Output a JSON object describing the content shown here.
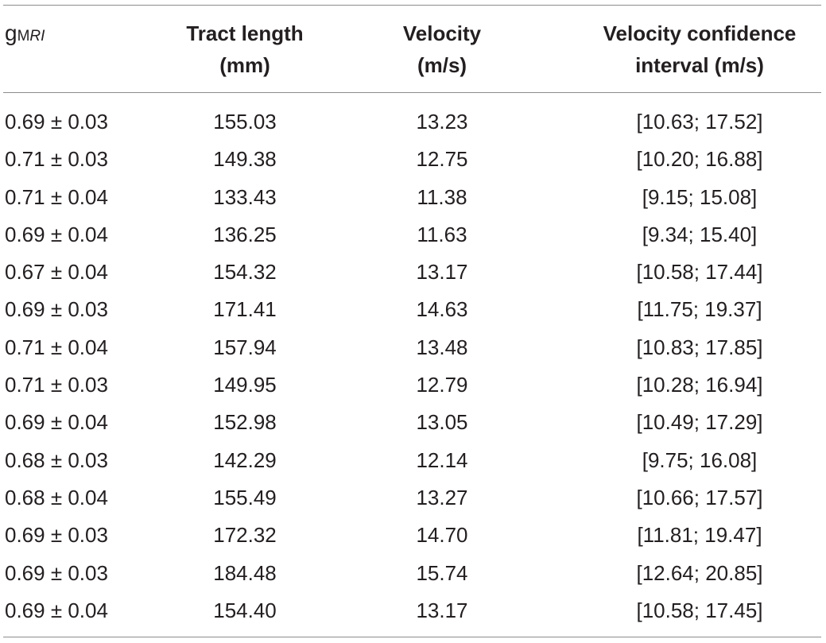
{
  "table": {
    "headers": {
      "col0_symbol": "g",
      "col0_subscript_upright": "M",
      "col0_subscript_italic": "RI",
      "col1_line1": "Tract length",
      "col1_line2": "(mm)",
      "col2_line1": "Velocity",
      "col2_line2": "(m/s)",
      "col3_line1": "Velocity confidence",
      "col3_line2": "interval (m/s)"
    },
    "rows": [
      [
        "0.69 ± 0.03",
        "155.03",
        "13.23",
        "[10.63; 17.52]"
      ],
      [
        "0.71 ± 0.03",
        "149.38",
        "12.75",
        "[10.20; 16.88]"
      ],
      [
        "0.71 ± 0.04",
        "133.43",
        "11.38",
        "[9.15; 15.08]"
      ],
      [
        "0.69 ± 0.04",
        "136.25",
        "11.63",
        "[9.34; 15.40]"
      ],
      [
        "0.67 ± 0.04",
        "154.32",
        "13.17",
        "[10.58; 17.44]"
      ],
      [
        "0.69 ± 0.03",
        "171.41",
        "14.63",
        "[11.75; 19.37]"
      ],
      [
        "0.71 ± 0.04",
        "157.94",
        "13.48",
        "[10.83; 17.85]"
      ],
      [
        "0.71 ± 0.03",
        "149.95",
        "12.79",
        "[10.28; 16.94]"
      ],
      [
        "0.69 ± 0.04",
        "152.98",
        "13.05",
        "[10.49; 17.29]"
      ],
      [
        "0.68 ± 0.03",
        "142.29",
        "12.14",
        "[9.75; 16.08]"
      ],
      [
        "0.68 ± 0.04",
        "155.49",
        "13.27",
        "[10.66; 17.57]"
      ],
      [
        "0.69 ± 0.03",
        "172.32",
        "14.70",
        "[11.81; 19.47]"
      ],
      [
        "0.69 ± 0.03",
        "184.48",
        "15.74",
        "[12.64; 20.85]"
      ],
      [
        "0.69 ± 0.04",
        "154.40",
        "13.17",
        "[10.58; 17.45]"
      ]
    ]
  }
}
